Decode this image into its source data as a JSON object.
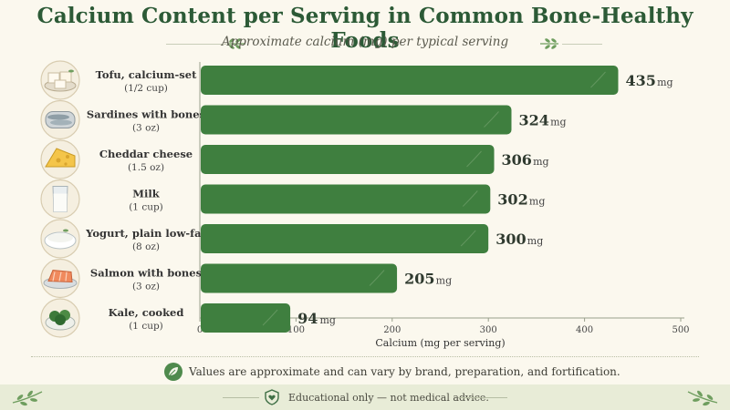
{
  "title": "Calcium Content per Serving in Common Bone-Healthy Foods",
  "subtitle": "Approximate calcium (mg) per typical serving",
  "note": "Values are approximate and can vary by brand, preparation, and fortification.",
  "footer": "Educational only — not medical advice.",
  "colors": {
    "bar": "#3f7f3f",
    "title": "#2c5a36",
    "background": "#fbf8ee"
  },
  "chart_data": {
    "type": "bar",
    "orientation": "horizontal",
    "xlabel": "Calcium (mg per serving)",
    "xlim": [
      0,
      500
    ],
    "xticks": [
      0,
      100,
      200,
      300,
      400,
      500
    ],
    "unit": "mg",
    "categories": [
      {
        "label": "Tofu, calcium-set",
        "serving": "(1/2 cup)",
        "icon": "tofu-icon"
      },
      {
        "label": "Sardines with bones",
        "serving": "(3 oz)",
        "icon": "sardines-icon"
      },
      {
        "label": "Cheddar cheese",
        "serving": "(1.5 oz)",
        "icon": "cheese-icon"
      },
      {
        "label": "Milk",
        "serving": "(1 cup)",
        "icon": "milk-icon"
      },
      {
        "label": "Yogurt, plain low-fat",
        "serving": "(8 oz)",
        "icon": "yogurt-icon"
      },
      {
        "label": "Salmon with bones",
        "serving": "(3 oz)",
        "icon": "salmon-icon"
      },
      {
        "label": "Kale, cooked",
        "serving": "(1 cup)",
        "icon": "kale-icon"
      }
    ],
    "values": [
      435,
      324,
      306,
      302,
      300,
      205,
      94
    ]
  }
}
